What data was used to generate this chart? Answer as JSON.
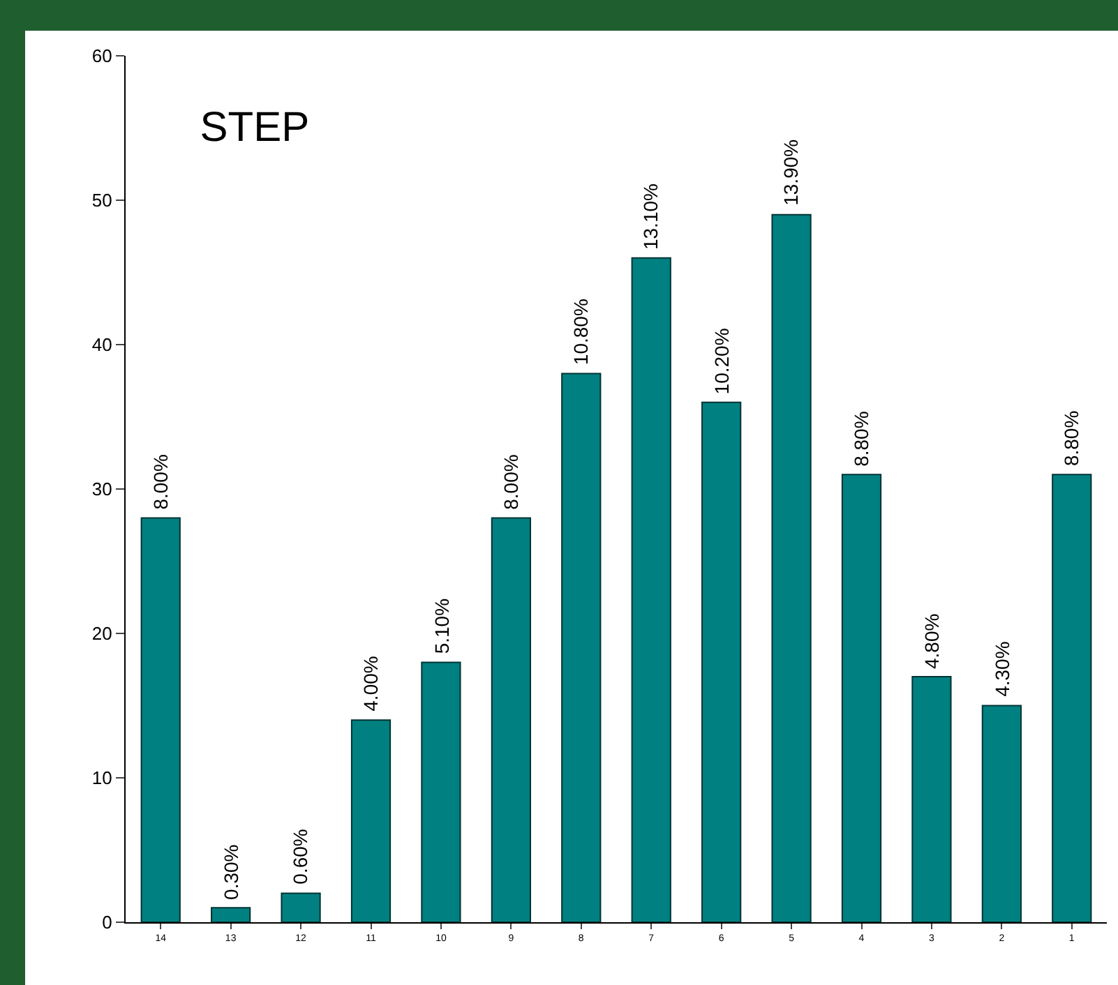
{
  "chart_data": {
    "type": "bar",
    "title": "STEP",
    "categories": [
      "14",
      "13",
      "12",
      "11",
      "10",
      "9",
      "8",
      "7",
      "6",
      "5",
      "4",
      "3",
      "2",
      "1"
    ],
    "values": [
      28,
      1,
      2,
      14,
      18,
      28,
      38,
      46,
      36,
      49,
      31,
      17,
      15,
      31
    ],
    "annotations": [
      {
        "text": "8.00%",
        "x": "14",
        "y": 28
      },
      {
        "text": "0.30%",
        "x": "13",
        "y": 1
      },
      {
        "text": "0.60%",
        "x": "12",
        "y": 2
      },
      {
        "text": "4.00%",
        "x": "11",
        "y": 14
      },
      {
        "text": "5.10%",
        "x": "10",
        "y": 18
      },
      {
        "text": "8.00%",
        "x": "9",
        "y": 28
      },
      {
        "text": "10.80%",
        "x": "8",
        "y": 38
      },
      {
        "text": "13.10%",
        "x": "7",
        "y": 46
      },
      {
        "text": "10.20%",
        "x": "6",
        "y": 36
      },
      {
        "text": "13.90%",
        "x": "5",
        "y": 49
      },
      {
        "text": "8.80%",
        "x": "4",
        "y": 31
      },
      {
        "text": "4.80%",
        "x": "3",
        "y": 17
      },
      {
        "text": "4.30%",
        "x": "2",
        "y": 15
      },
      {
        "text": "8.80%",
        "x": "1",
        "y": 31
      }
    ],
    "color": "#008080",
    "ylim": [
      0,
      60
    ],
    "yticks": [
      0,
      10,
      20,
      30,
      40,
      50,
      60
    ],
    "grid": false
  }
}
